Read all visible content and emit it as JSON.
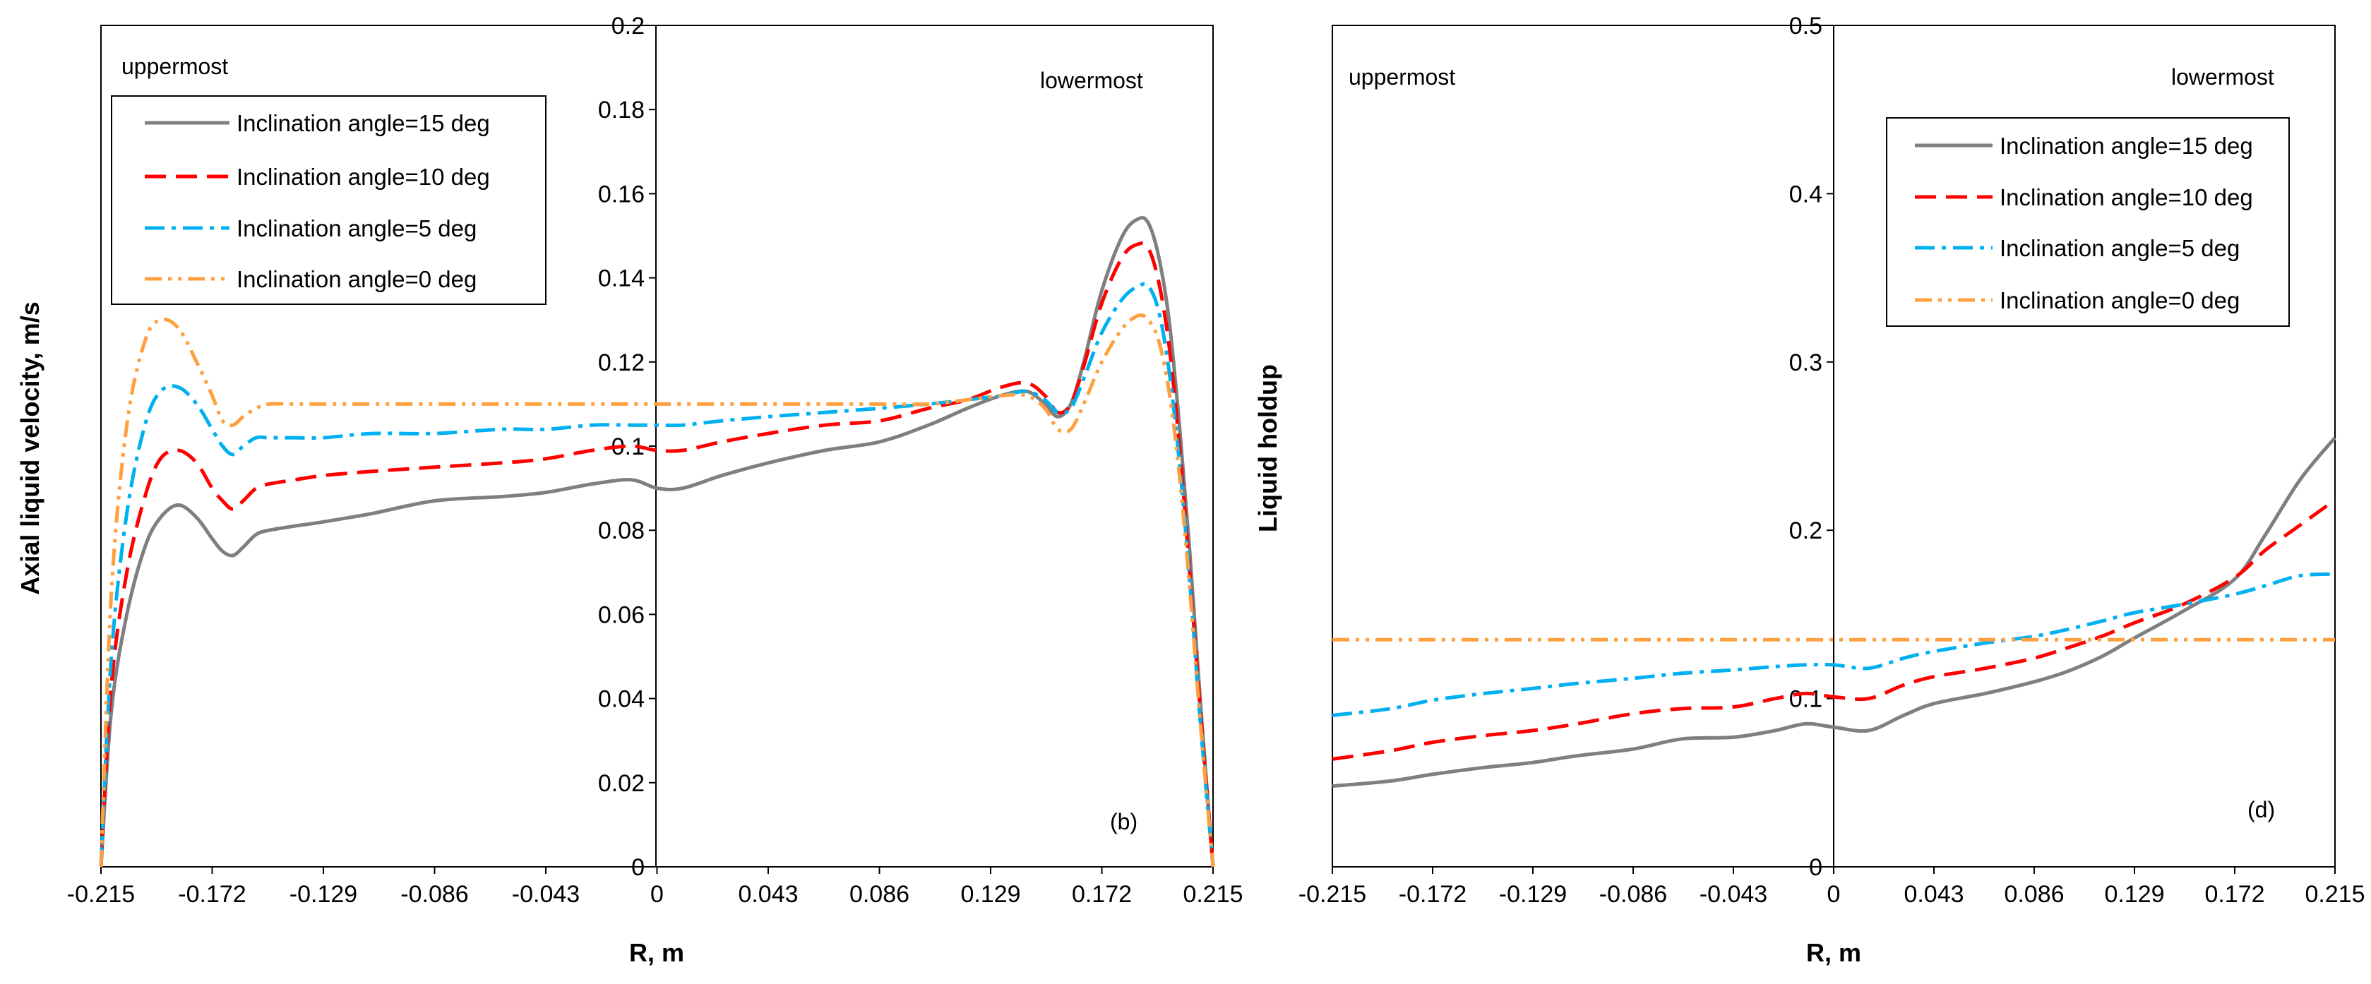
{
  "chart_data": [
    {
      "type": "line",
      "panel": "(b)",
      "xlabel": "R, m",
      "ylabel": "Axial liquid velocity, m/s",
      "xlim": [
        -0.215,
        0.215
      ],
      "ylim": [
        0,
        0.2
      ],
      "xticks": [
        "-0.215",
        "-0.172",
        "-0.129",
        "-0.086",
        "-0.043",
        "0",
        "0.043",
        "0.086",
        "0.129",
        "0.172",
        "0.215"
      ],
      "yticks": [
        "0",
        "0.02",
        "0.04",
        "0.06",
        "0.08",
        "0.1",
        "0.12",
        "0.14",
        "0.16",
        "0.18",
        "0.2"
      ],
      "annotations": {
        "left": "uppermost",
        "right": "lowermost",
        "panel_label": "(b)"
      },
      "legend": "top-left",
      "series": [
        {
          "name": "Inclination angle=15 deg",
          "color": "#7f7f7f",
          "dash": "solid",
          "x": [
            -0.215,
            -0.211,
            -0.205,
            -0.198,
            -0.192,
            -0.185,
            -0.178,
            -0.172,
            -0.168,
            -0.164,
            -0.16,
            -0.155,
            -0.15,
            -0.14,
            -0.129,
            -0.11,
            -0.086,
            -0.06,
            -0.043,
            -0.025,
            -0.01,
            0,
            0.01,
            0.025,
            0.043,
            0.065,
            0.086,
            0.105,
            0.12,
            0.133,
            0.143,
            0.15,
            0.155,
            0.16,
            0.165,
            0.172,
            0.18,
            0.186,
            0.19,
            0.194,
            0.198,
            0.202,
            0.206,
            0.21,
            0.215
          ],
          "values": [
            0.0,
            0.037,
            0.06,
            0.076,
            0.083,
            0.086,
            0.083,
            0.078,
            0.075,
            0.074,
            0.076,
            0.079,
            0.08,
            0.081,
            0.082,
            0.084,
            0.087,
            0.088,
            0.089,
            0.091,
            0.092,
            0.09,
            0.09,
            0.093,
            0.096,
            0.099,
            0.101,
            0.105,
            0.109,
            0.112,
            0.113,
            0.11,
            0.107,
            0.11,
            0.12,
            0.137,
            0.15,
            0.154,
            0.153,
            0.145,
            0.13,
            0.105,
            0.075,
            0.04,
            0.0
          ]
        },
        {
          "name": "Inclination angle=10 deg",
          "color": "#ff0000",
          "dash": "long-dash",
          "x": [
            -0.215,
            -0.211,
            -0.205,
            -0.198,
            -0.192,
            -0.185,
            -0.178,
            -0.172,
            -0.168,
            -0.164,
            -0.16,
            -0.155,
            -0.15,
            -0.14,
            -0.129,
            -0.11,
            -0.086,
            -0.06,
            -0.043,
            -0.025,
            -0.01,
            0,
            0.01,
            0.025,
            0.043,
            0.065,
            0.086,
            0.105,
            0.12,
            0.133,
            0.143,
            0.15,
            0.155,
            0.16,
            0.165,
            0.172,
            0.18,
            0.186,
            0.19,
            0.194,
            0.198,
            0.202,
            0.206,
            0.21,
            0.215
          ],
          "values": [
            0.0,
            0.043,
            0.07,
            0.088,
            0.097,
            0.099,
            0.096,
            0.09,
            0.087,
            0.085,
            0.087,
            0.09,
            0.091,
            0.092,
            0.093,
            0.094,
            0.095,
            0.096,
            0.097,
            0.099,
            0.1,
            0.099,
            0.099,
            0.101,
            0.103,
            0.105,
            0.106,
            0.109,
            0.111,
            0.114,
            0.115,
            0.112,
            0.108,
            0.11,
            0.119,
            0.134,
            0.145,
            0.148,
            0.147,
            0.139,
            0.124,
            0.1,
            0.07,
            0.038,
            0.0
          ]
        },
        {
          "name": "Inclination angle=5 deg",
          "color": "#00b0f0",
          "dash": "dash-dot",
          "x": [
            -0.215,
            -0.211,
            -0.205,
            -0.198,
            -0.192,
            -0.185,
            -0.178,
            -0.172,
            -0.168,
            -0.164,
            -0.16,
            -0.155,
            -0.15,
            -0.14,
            -0.129,
            -0.11,
            -0.086,
            -0.06,
            -0.043,
            -0.025,
            -0.01,
            0,
            0.01,
            0.025,
            0.043,
            0.065,
            0.086,
            0.105,
            0.12,
            0.133,
            0.143,
            0.15,
            0.155,
            0.16,
            0.165,
            0.172,
            0.18,
            0.186,
            0.19,
            0.194,
            0.198,
            0.202,
            0.206,
            0.21,
            0.215
          ],
          "values": [
            0.0,
            0.05,
            0.084,
            0.105,
            0.113,
            0.114,
            0.11,
            0.104,
            0.1,
            0.098,
            0.1,
            0.102,
            0.102,
            0.102,
            0.102,
            0.103,
            0.103,
            0.104,
            0.104,
            0.105,
            0.105,
            0.105,
            0.105,
            0.106,
            0.107,
            0.108,
            0.109,
            0.11,
            0.111,
            0.112,
            0.113,
            0.111,
            0.108,
            0.109,
            0.116,
            0.127,
            0.135,
            0.138,
            0.138,
            0.132,
            0.118,
            0.096,
            0.068,
            0.035,
            0.0
          ]
        },
        {
          "name": "Inclination angle=0 deg",
          "color": "#ffa040",
          "dash": "dash-dot-dot",
          "x": [
            -0.215,
            -0.211,
            -0.205,
            -0.198,
            -0.192,
            -0.185,
            -0.178,
            -0.172,
            -0.168,
            -0.164,
            -0.16,
            -0.155,
            -0.15,
            -0.14,
            -0.129,
            -0.11,
            -0.086,
            -0.06,
            -0.043,
            -0.025,
            -0.01,
            0,
            0.01,
            0.025,
            0.043,
            0.065,
            0.086,
            0.105,
            0.12,
            0.133,
            0.143,
            0.15,
            0.155,
            0.16,
            0.165,
            0.172,
            0.18,
            0.186,
            0.19,
            0.194,
            0.198,
            0.202,
            0.206,
            0.21,
            0.215
          ],
          "values": [
            0.0,
            0.065,
            0.105,
            0.125,
            0.13,
            0.128,
            0.12,
            0.112,
            0.106,
            0.105,
            0.107,
            0.109,
            0.11,
            0.11,
            0.11,
            0.11,
            0.11,
            0.11,
            0.11,
            0.11,
            0.11,
            0.11,
            0.11,
            0.11,
            0.11,
            0.11,
            0.11,
            0.11,
            0.111,
            0.112,
            0.112,
            0.109,
            0.104,
            0.104,
            0.11,
            0.12,
            0.128,
            0.131,
            0.13,
            0.125,
            0.113,
            0.093,
            0.066,
            0.035,
            0.0
          ]
        }
      ]
    },
    {
      "type": "line",
      "panel": "(d)",
      "xlabel": "R, m",
      "ylabel": "Liquid holdup",
      "xlim": [
        -0.215,
        0.215
      ],
      "ylim": [
        0,
        0.5
      ],
      "xticks": [
        "-0.215",
        "-0.172",
        "-0.129",
        "-0.086",
        "-0.043",
        "0",
        "0.043",
        "0.086",
        "0.129",
        "0.172",
        "0.215"
      ],
      "yticks": [
        "0",
        "0.1",
        "0.2",
        "0.3",
        "0.4",
        "0.5"
      ],
      "annotations": {
        "left": "uppermost",
        "right": "lowermost",
        "panel_label": "(d)"
      },
      "legend": "top-right",
      "series": [
        {
          "name": "Inclination angle=15 deg",
          "color": "#7f7f7f",
          "dash": "solid",
          "x": [
            -0.215,
            -0.19,
            -0.172,
            -0.15,
            -0.129,
            -0.11,
            -0.086,
            -0.065,
            -0.043,
            -0.025,
            -0.012,
            0,
            0.015,
            0.03,
            0.043,
            0.065,
            0.086,
            0.1,
            0.115,
            0.129,
            0.15,
            0.172,
            0.185,
            0.2,
            0.215
          ],
          "values": [
            0.048,
            0.051,
            0.055,
            0.059,
            0.062,
            0.066,
            0.07,
            0.076,
            0.077,
            0.081,
            0.085,
            0.083,
            0.081,
            0.09,
            0.097,
            0.103,
            0.11,
            0.116,
            0.125,
            0.136,
            0.152,
            0.171,
            0.197,
            0.23,
            0.255
          ]
        },
        {
          "name": "Inclination angle=10 deg",
          "color": "#ff0000",
          "dash": "long-dash",
          "x": [
            -0.215,
            -0.19,
            -0.172,
            -0.15,
            -0.129,
            -0.11,
            -0.086,
            -0.065,
            -0.043,
            -0.025,
            -0.012,
            0,
            0.015,
            0.03,
            0.043,
            0.065,
            0.086,
            0.1,
            0.115,
            0.129,
            0.15,
            0.172,
            0.185,
            0.2,
            0.215
          ],
          "values": [
            0.064,
            0.069,
            0.074,
            0.078,
            0.081,
            0.085,
            0.091,
            0.094,
            0.095,
            0.1,
            0.103,
            0.101,
            0.1,
            0.108,
            0.113,
            0.118,
            0.124,
            0.13,
            0.137,
            0.145,
            0.156,
            0.172,
            0.188,
            0.203,
            0.218
          ]
        },
        {
          "name": "Inclination angle=5 deg",
          "color": "#00b0f0",
          "dash": "dash-dot",
          "x": [
            -0.215,
            -0.19,
            -0.172,
            -0.15,
            -0.129,
            -0.11,
            -0.086,
            -0.065,
            -0.043,
            -0.025,
            -0.012,
            0,
            0.015,
            0.03,
            0.043,
            0.065,
            0.086,
            0.1,
            0.115,
            0.129,
            0.15,
            0.172,
            0.185,
            0.2,
            0.215
          ],
          "values": [
            0.09,
            0.094,
            0.099,
            0.103,
            0.106,
            0.109,
            0.112,
            0.115,
            0.117,
            0.119,
            0.12,
            0.12,
            0.118,
            0.124,
            0.128,
            0.133,
            0.137,
            0.141,
            0.146,
            0.151,
            0.156,
            0.162,
            0.167,
            0.173,
            0.174
          ]
        },
        {
          "name": "Inclination angle=0 deg",
          "color": "#ffa040",
          "dash": "dash-dot-dot",
          "x": [
            -0.215,
            0.215
          ],
          "values": [
            0.135,
            0.135
          ]
        }
      ]
    }
  ]
}
